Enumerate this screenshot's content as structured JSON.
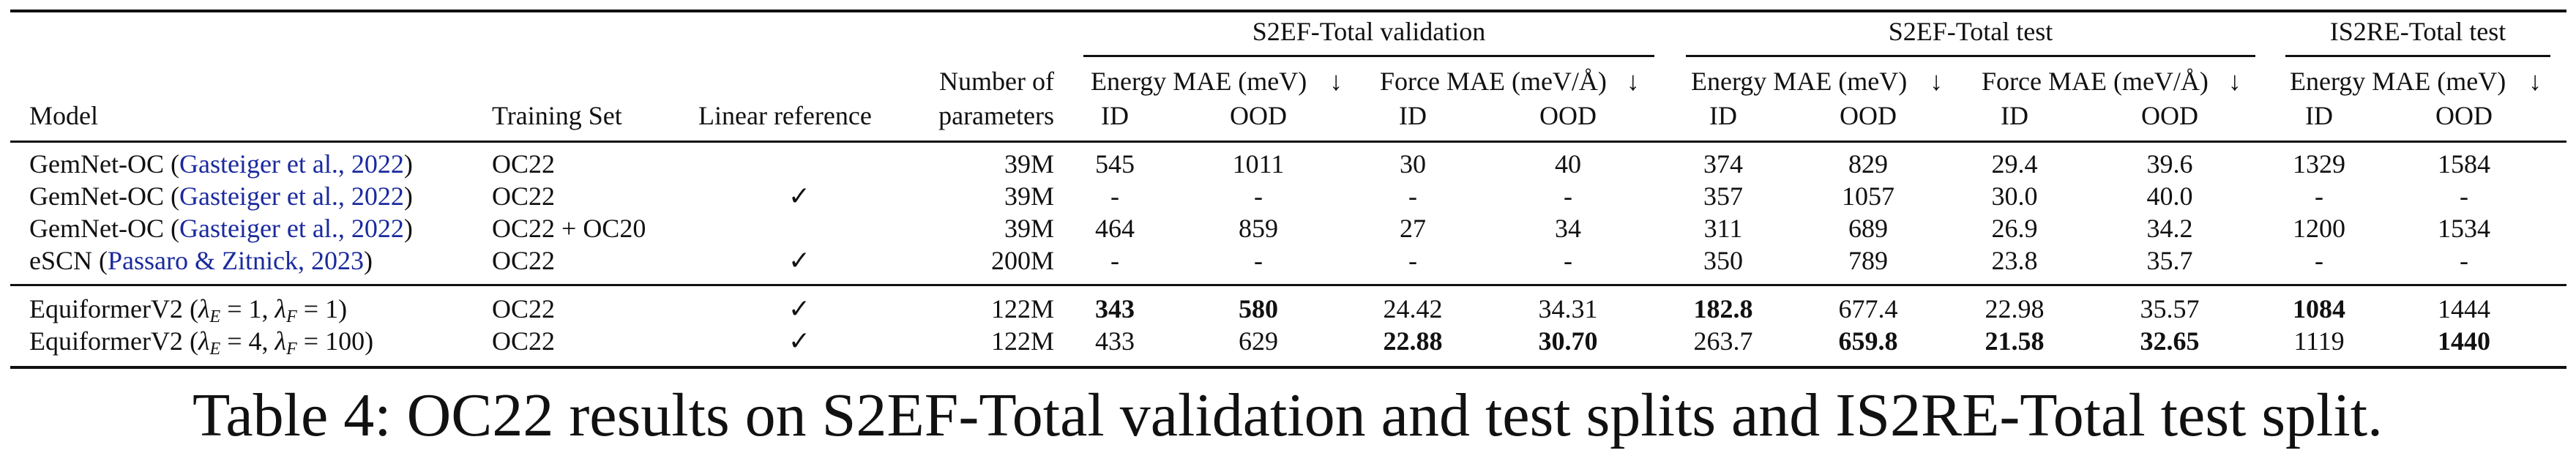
{
  "groups": {
    "val": "S2EF-Total validation",
    "test": "S2EF-Total test",
    "is2re": "IS2RE-Total test"
  },
  "headers": {
    "model": "Model",
    "training_set": "Training Set",
    "linear_reference": "Linear reference",
    "params_line1": "Number of",
    "params_line2": "parameters",
    "energy_mae": "Energy MAE (meV)",
    "force_mae": "Force MAE (meV/Å)",
    "arrow": "↓",
    "id": "ID",
    "ood": "OOD"
  },
  "rows": [
    {
      "model": "GemNet-OC",
      "cite": "Gasteiger et al., 2022",
      "training_set": "OC22",
      "linear_ref": "",
      "params": "39M",
      "val": [
        "545",
        "1011",
        "30",
        "40"
      ],
      "test": [
        "374",
        "829",
        "29.4",
        "39.6"
      ],
      "is2re": [
        "1329",
        "1584"
      ]
    },
    {
      "model": "GemNet-OC",
      "cite": "Gasteiger et al., 2022",
      "training_set": "OC22",
      "linear_ref": "✓",
      "params": "39M",
      "val": [
        "-",
        "-",
        "-",
        "-"
      ],
      "test": [
        "357",
        "1057",
        "30.0",
        "40.0"
      ],
      "is2re": [
        "-",
        "-"
      ]
    },
    {
      "model": "GemNet-OC",
      "cite": "Gasteiger et al., 2022",
      "training_set": "OC22 + OC20",
      "linear_ref": "",
      "params": "39M",
      "val": [
        "464",
        "859",
        "27",
        "34"
      ],
      "test": [
        "311",
        "689",
        "26.9",
        "34.2"
      ],
      "is2re": [
        "1200",
        "1534"
      ]
    },
    {
      "model": "eSCN",
      "cite": "Passaro & Zitnick, 2023",
      "training_set": "OC22",
      "linear_ref": "✓",
      "params": "200M",
      "val": [
        "-",
        "-",
        "-",
        "-"
      ],
      "test": [
        "350",
        "789",
        "23.8",
        "35.7"
      ],
      "is2re": [
        "-",
        "-"
      ]
    },
    {
      "model": "EquiformerV2",
      "lambda_e": "1",
      "lambda_f": "1",
      "training_set": "OC22",
      "linear_ref": "✓",
      "params": "122M",
      "val": [
        "343",
        "580",
        "24.42",
        "34.31"
      ],
      "test": [
        "182.8",
        "677.4",
        "22.98",
        "35.57"
      ],
      "is2re": [
        "1084",
        "1444"
      ]
    },
    {
      "model": "EquiformerV2",
      "lambda_e": "4",
      "lambda_f": "100",
      "training_set": "OC22",
      "linear_ref": "✓",
      "params": "122M",
      "val": [
        "433",
        "629",
        "22.88",
        "30.70"
      ],
      "test": [
        "263.7",
        "659.8",
        "21.58",
        "32.65"
      ],
      "is2re": [
        "1119",
        "1440"
      ]
    }
  ],
  "caption": "Table 4: OC22 results on S2EF-Total validation and test splits and IS2RE-Total test split."
}
